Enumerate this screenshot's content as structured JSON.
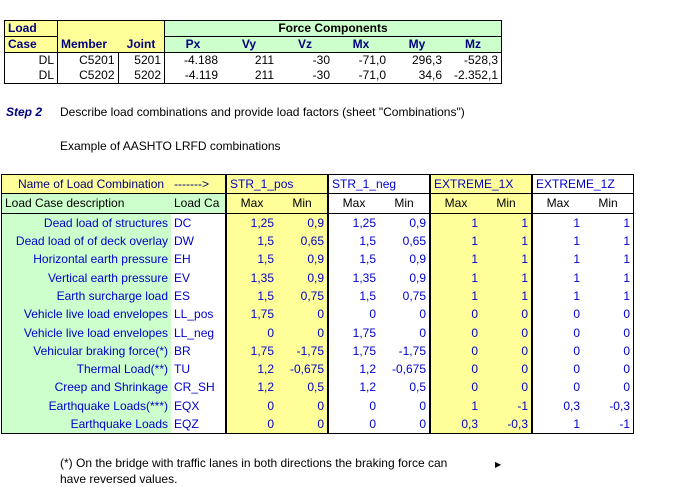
{
  "top_table": {
    "headers": {
      "load": "Load",
      "case": "Case",
      "member": "Member",
      "joint": "Joint",
      "force_components": "Force Components",
      "px": "Px",
      "vy": "Vy",
      "vz": "Vz",
      "mx": "Mx",
      "my": "My",
      "mz": "Mz"
    },
    "rows": [
      {
        "case": "DL",
        "member": "C5201",
        "joint": "5201",
        "px": "-4.188",
        "vy": "211",
        "vz": "-30",
        "mx": "-71,0",
        "my": "296,3",
        "mz": "-528,3"
      },
      {
        "case": "DL",
        "member": "C5202",
        "joint": "5202",
        "px": "-4.119",
        "vy": "211",
        "vz": "-30",
        "mx": "-71,0",
        "my": "34,6",
        "mz": "-2.352,1"
      }
    ]
  },
  "step": {
    "label": "Step 2",
    "text": "Describe load combinations and provide load factors (sheet \"Combinations\")",
    "example": "Example of AASHTO LRFD combinations"
  },
  "comb_table": {
    "name_header": "Name of Load Combination",
    "arrow": "------->",
    "combos": [
      "STR_1_pos",
      "STR_1_neg",
      "EXTREME_1X",
      "EXTREME_1Z"
    ],
    "desc_header": "Load Case description",
    "load_case_header": "Load Ca",
    "max": "Max",
    "min": "Min",
    "rows": [
      {
        "desc": "Dead load of structures",
        "code": "DC",
        "v": [
          "1,25",
          "0,9",
          "1,25",
          "0,9",
          "1",
          "1",
          "1",
          "1"
        ]
      },
      {
        "desc": "Dead load of of deck overlay",
        "code": "DW",
        "v": [
          "1,5",
          "0,65",
          "1,5",
          "0,65",
          "1",
          "1",
          "1",
          "1"
        ]
      },
      {
        "desc": "Horizontal earth pressure",
        "code": "EH",
        "v": [
          "1,5",
          "0,9",
          "1,5",
          "0,9",
          "1",
          "1",
          "1",
          "1"
        ]
      },
      {
        "desc": "Vertical earth pressure",
        "code": "EV",
        "v": [
          "1,35",
          "0,9",
          "1,35",
          "0,9",
          "1",
          "1",
          "1",
          "1"
        ]
      },
      {
        "desc": "Earth surcharge load",
        "code": "ES",
        "v": [
          "1,5",
          "0,75",
          "1,5",
          "0,75",
          "1",
          "1",
          "1",
          "1"
        ]
      },
      {
        "desc": "Vehicle live load envelopes",
        "code": "LL_pos",
        "v": [
          "1,75",
          "0",
          "0",
          "0",
          "0",
          "0",
          "0",
          "0"
        ]
      },
      {
        "desc": "Vehicle live load envelopes",
        "code": "LL_neg",
        "v": [
          "0",
          "0",
          "1,75",
          "0",
          "0",
          "0",
          "0",
          "0"
        ]
      },
      {
        "desc": "Vehicular braking force(*)",
        "code": "BR",
        "v": [
          "1,75",
          "-1,75",
          "1,75",
          "-1,75",
          "0",
          "0",
          "0",
          "0"
        ]
      },
      {
        "desc": "Thermal Load(**)",
        "code": "TU",
        "v": [
          "1,2",
          "-0,675",
          "1,2",
          "-0,675",
          "0",
          "0",
          "0",
          "0"
        ]
      },
      {
        "desc": "Creep and Shrinkage",
        "code": "CR_SH",
        "v": [
          "1,2",
          "0,5",
          "1,2",
          "0,5",
          "0",
          "0",
          "0",
          "0"
        ]
      },
      {
        "desc": "Earthquake Loads(***)",
        "code": "EQX",
        "v": [
          "0",
          "0",
          "0",
          "0",
          "1",
          "-1",
          "0,3",
          "-0,3"
        ]
      },
      {
        "desc": "Earthquake Loads",
        "code": "EQZ",
        "v": [
          "0",
          "0",
          "0",
          "0",
          "0,3",
          "-0,3",
          "1",
          "-1"
        ]
      }
    ]
  },
  "footnote": {
    "line1": "(*)  On the bridge with traffic lanes in both directions the braking force can",
    "line2": "have reversed values."
  },
  "colors": {
    "header_green": "#ccffcc",
    "header_yellow": "#ffff99",
    "value_blue": "#0000cc",
    "header_navy": "#000080"
  }
}
